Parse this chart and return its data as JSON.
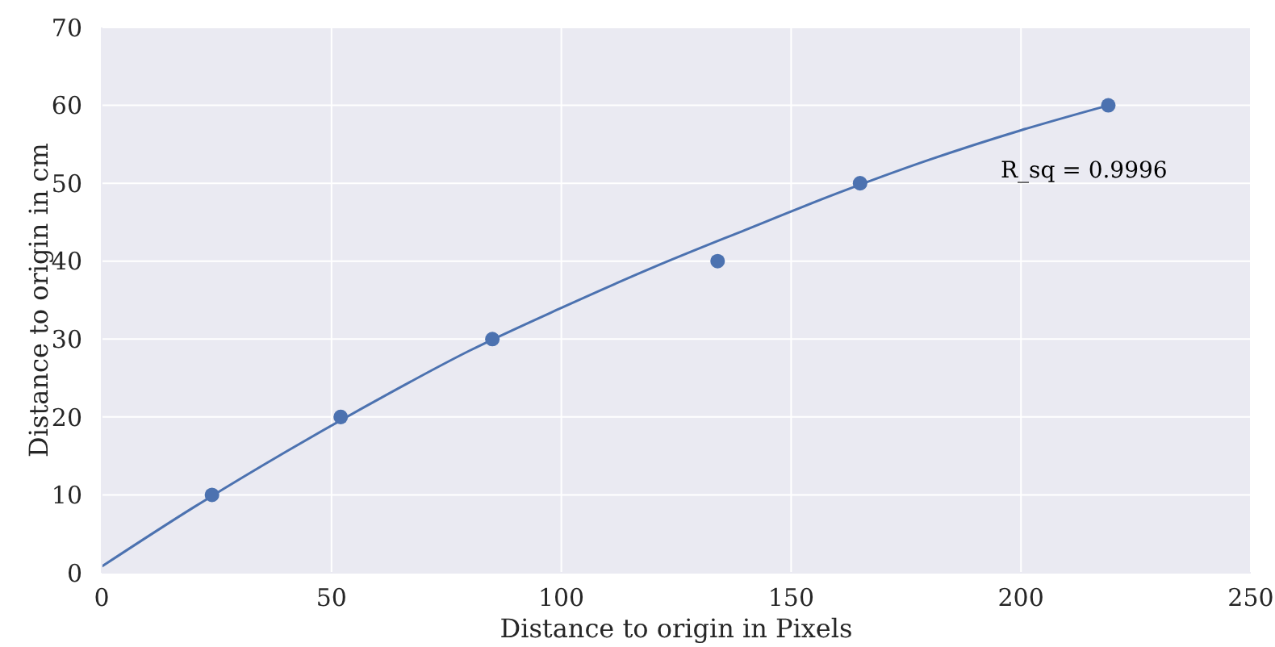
{
  "chart_data": {
    "type": "scatter",
    "xlabel": "Distance to origin in Pixels",
    "ylabel": "Distance to origin in cm",
    "xlim": [
      0,
      250
    ],
    "xticks": [
      0,
      50,
      100,
      150,
      200,
      250
    ],
    "ylim": [
      0,
      70
    ],
    "yticks": [
      0,
      10,
      20,
      30,
      40,
      50,
      60,
      70
    ],
    "grid": true,
    "annotations": [
      "R_sq = 0.9996"
    ],
    "series": [
      {
        "color": "#4c72b0",
        "marker": "circle",
        "x": [
          24,
          52,
          85,
          134,
          165,
          219
        ],
        "values": [
          10,
          20,
          30,
          40,
          50,
          60
        ]
      },
      {
        "type": "line",
        "color": "#4c72b0",
        "x": [
          0,
          20,
          40,
          60,
          80,
          100,
          120,
          140,
          160,
          180,
          200,
          219
        ],
        "values": [
          0.8,
          8.4,
          15.5,
          22.2,
          28.5,
          34.0,
          39.2,
          44.0,
          48.7,
          53.0,
          56.8,
          60.0
        ]
      }
    ]
  }
}
